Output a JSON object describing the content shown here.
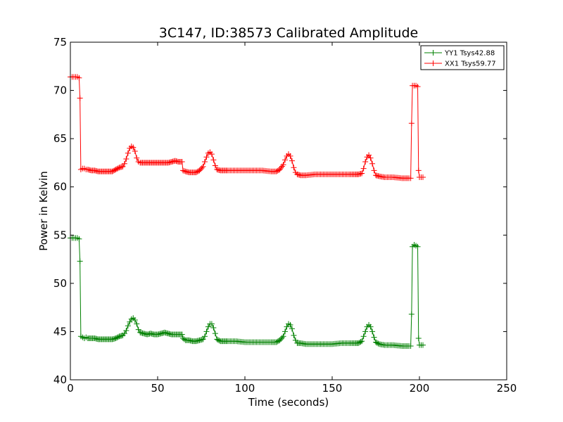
{
  "chart_data": {
    "type": "line",
    "title": "3C147, ID:38573 Calibrated Amplitude",
    "xlabel": "Time (seconds)",
    "ylabel": "Power in Kelvin",
    "xlim": [
      0,
      250
    ],
    "ylim": [
      40,
      75
    ],
    "x_ticks": [
      0,
      50,
      100,
      150,
      200,
      250
    ],
    "y_ticks": [
      40,
      45,
      50,
      55,
      60,
      65,
      70,
      75
    ],
    "grid": false,
    "legend_position": "top-right",
    "marker": "+",
    "series": [
      {
        "name": "YY1 Tsys42.88",
        "color": "#008000",
        "x": [
          0,
          1,
          2,
          3,
          4,
          5,
          5.5,
          6,
          7,
          8,
          9,
          10,
          12,
          14,
          16,
          18,
          20,
          22,
          24,
          26,
          28,
          30,
          31,
          32,
          33,
          34,
          35,
          36,
          37,
          38,
          39,
          40,
          42,
          44,
          46,
          48,
          50,
          52,
          54,
          56,
          58,
          60,
          62,
          64,
          64.5,
          66,
          68,
          70,
          72,
          74,
          76,
          77,
          78,
          79,
          80,
          81,
          82,
          83,
          84,
          86,
          88,
          90,
          95,
          100,
          105,
          110,
          115,
          118,
          120,
          122,
          123,
          124,
          125,
          126,
          127,
          128,
          129,
          130,
          132,
          135,
          140,
          145,
          150,
          155,
          160,
          163,
          165,
          167,
          168,
          169,
          170,
          171,
          172,
          173,
          174,
          175,
          177,
          180,
          185,
          190,
          194,
          195,
          195.5,
          196,
          197,
          198,
          199,
          199.5,
          200,
          201,
          202
        ],
        "values": [
          54.7,
          54.7,
          54.7,
          54.7,
          54.7,
          54.6,
          52.3,
          44.5,
          44.4,
          44.3,
          44.4,
          44.3,
          44.3,
          44.3,
          44.2,
          44.2,
          44.2,
          44.2,
          44.2,
          44.3,
          44.5,
          44.6,
          44.8,
          45.1,
          45.6,
          46.0,
          46.3,
          46.4,
          46.2,
          45.8,
          45.2,
          44.9,
          44.8,
          44.7,
          44.8,
          44.7,
          44.7,
          44.8,
          44.9,
          44.8,
          44.7,
          44.7,
          44.7,
          44.7,
          44.3,
          44.1,
          44.1,
          44.0,
          44.0,
          44.1,
          44.2,
          44.5,
          45.0,
          45.5,
          45.8,
          45.8,
          45.4,
          44.8,
          44.2,
          44.0,
          44.0,
          44.0,
          44.0,
          43.9,
          43.9,
          43.9,
          43.9,
          43.9,
          44.1,
          44.5,
          45.0,
          45.5,
          45.8,
          45.7,
          45.3,
          44.6,
          44.1,
          43.8,
          43.8,
          43.7,
          43.7,
          43.7,
          43.7,
          43.8,
          43.8,
          43.8,
          43.8,
          44.0,
          44.5,
          45.0,
          45.5,
          45.7,
          45.5,
          45.0,
          44.4,
          43.9,
          43.7,
          43.6,
          43.6,
          43.5,
          43.5,
          43.5,
          46.8,
          53.8,
          54.0,
          53.9,
          53.8,
          44.3,
          43.6,
          43.6,
          43.6
        ]
      },
      {
        "name": "XX1 Tsys59.77",
        "color": "#ff0000",
        "x": [
          0,
          1,
          2,
          3,
          4,
          5,
          5.5,
          6,
          7,
          8,
          9,
          10,
          12,
          14,
          16,
          18,
          20,
          22,
          24,
          26,
          28,
          30,
          31,
          32,
          33,
          34,
          35,
          36,
          37,
          38,
          39,
          40,
          42,
          44,
          46,
          48,
          50,
          52,
          54,
          56,
          58,
          60,
          62,
          64,
          64.5,
          66,
          68,
          70,
          72,
          74,
          76,
          77,
          78,
          79,
          80,
          81,
          82,
          83,
          84,
          86,
          88,
          90,
          95,
          100,
          105,
          110,
          115,
          118,
          120,
          122,
          123,
          124,
          125,
          126,
          127,
          128,
          129,
          130,
          132,
          135,
          140,
          145,
          150,
          155,
          160,
          163,
          165,
          167,
          168,
          169,
          170,
          171,
          172,
          173,
          174,
          175,
          177,
          180,
          185,
          190,
          194,
          195,
          195.5,
          196,
          197,
          198,
          199,
          199.5,
          200,
          201,
          202
        ],
        "values": [
          71.4,
          71.4,
          71.4,
          71.4,
          71.4,
          71.3,
          69.2,
          61.8,
          61.9,
          61.9,
          61.8,
          61.8,
          61.7,
          61.7,
          61.6,
          61.6,
          61.6,
          61.6,
          61.6,
          61.8,
          62.0,
          62.1,
          62.4,
          62.9,
          63.5,
          64.0,
          64.2,
          64.1,
          63.7,
          63.0,
          62.6,
          62.5,
          62.5,
          62.5,
          62.5,
          62.5,
          62.5,
          62.5,
          62.5,
          62.5,
          62.6,
          62.7,
          62.6,
          62.6,
          61.7,
          61.6,
          61.5,
          61.5,
          61.5,
          61.7,
          62.1,
          62.6,
          63.1,
          63.5,
          63.6,
          63.4,
          62.8,
          62.2,
          61.8,
          61.7,
          61.7,
          61.7,
          61.7,
          61.7,
          61.7,
          61.7,
          61.6,
          61.6,
          61.8,
          62.3,
          62.8,
          63.2,
          63.4,
          63.2,
          62.7,
          62.0,
          61.5,
          61.3,
          61.2,
          61.2,
          61.3,
          61.3,
          61.3,
          61.3,
          61.3,
          61.3,
          61.3,
          61.4,
          61.9,
          62.6,
          63.1,
          63.3,
          63.0,
          62.4,
          61.7,
          61.2,
          61.1,
          61.0,
          61.0,
          60.9,
          60.9,
          60.9,
          66.6,
          70.5,
          70.5,
          70.5,
          70.4,
          61.7,
          61.0,
          61.0,
          61.0
        ]
      }
    ]
  }
}
